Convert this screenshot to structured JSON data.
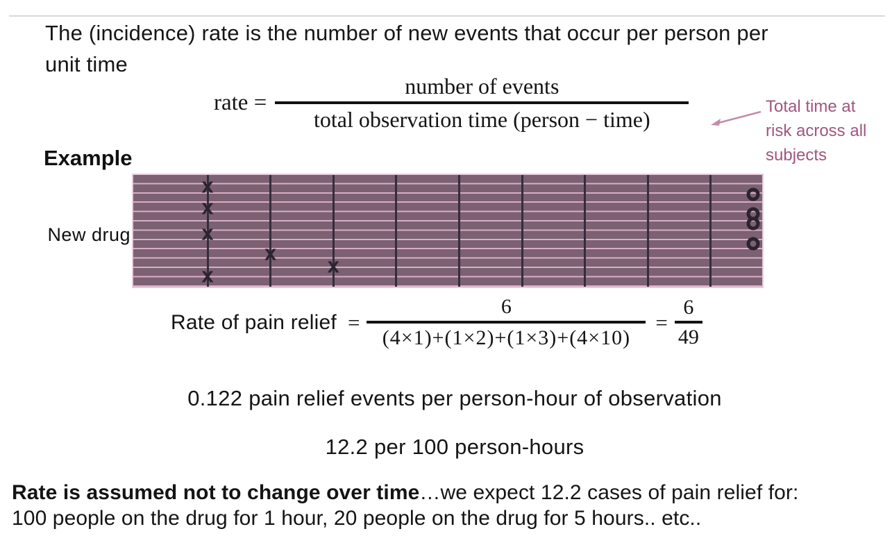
{
  "slide": {
    "title_line1": "The (incidence) rate is the number of new events that occur per person per",
    "title_line2": "unit time",
    "rate_formula": {
      "lhs": "rate =",
      "numerator": "number of events",
      "denominator": "total observation time (person − time)"
    },
    "annotation": {
      "line1": "Total time at",
      "line2": "risk across all",
      "line3": "subjects",
      "color": "#a0567f"
    },
    "example_label": "Example",
    "example_formula": {
      "lhs": "Rate of pain relief",
      "eq": "=",
      "numerator": "6",
      "denominator": "(4×1)+(1×2)+(1×3)+(4×10)",
      "eq2": "=",
      "numerator2": "6",
      "denominator2": "49"
    },
    "result_line1": "0.122 pain relief events per person-hour of observation",
    "result_line2": "12.2 per 100 person-hours",
    "footer": {
      "bold": "Rate is assumed not to change over time",
      "rest": "…we expect 12.2 cases of pain relief for:",
      "line2": "100 people on the drug for 1 hour, 20 people on the drug for 5 hours.. etc.."
    }
  },
  "chart_data": {
    "type": "scatter",
    "title": "Person-time follow-up diagram",
    "y_label": "New drug",
    "x_unit": "hours",
    "x_range": [
      0,
      10
    ],
    "x_gridlines": [
      1,
      2,
      3,
      4,
      5,
      6,
      7,
      8,
      9
    ],
    "n_rows": 12,
    "band_color": "#7b6171",
    "row_line_color": "#d9aec7",
    "gridline_color": "#352c3c",
    "marker_color": "#2b2330",
    "event_marker": "x",
    "censored_marker": "o",
    "events": [
      {
        "t": 1,
        "row": 0.7
      },
      {
        "t": 1,
        "row": 3.0
      },
      {
        "t": 1,
        "row": 5.8
      },
      {
        "t": 1,
        "row": 10.3
      },
      {
        "t": 2,
        "row": 7.9
      },
      {
        "t": 3,
        "row": 9.3
      }
    ],
    "censored": [
      {
        "t": 10,
        "row": 1.6
      },
      {
        "t": 10,
        "row": 3.7
      },
      {
        "t": 10,
        "row": 4.7
      },
      {
        "t": 10,
        "row": 6.9
      }
    ],
    "summary": {
      "n_events": 6,
      "person_time_terms": "(4×1)+(1×2)+(1×3)+(4×10)",
      "person_time_total": 49,
      "rate": 0.122,
      "rate_per_100": 12.2
    }
  }
}
